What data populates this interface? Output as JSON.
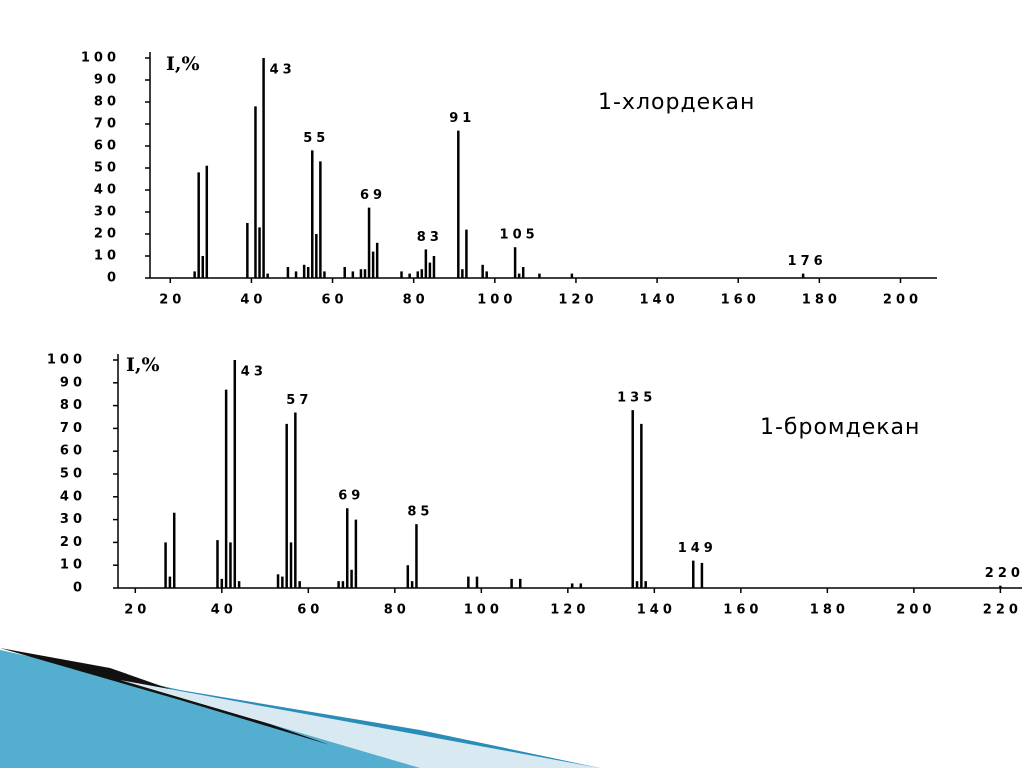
{
  "chart_data": [
    {
      "type": "bar",
      "title": "1-хлордекан",
      "y_label": "I,%",
      "color": "#000000",
      "x": [
        26,
        27,
        28,
        29,
        39,
        41,
        42,
        43,
        44,
        49,
        51,
        53,
        54,
        55,
        56,
        57,
        58,
        63,
        65,
        67,
        68,
        69,
        70,
        71,
        77,
        79,
        81,
        82,
        83,
        84,
        85,
        91,
        92,
        93,
        97,
        98,
        105,
        106,
        107,
        111,
        119,
        176
      ],
      "values": [
        3,
        48,
        10,
        51,
        25,
        78,
        23,
        100,
        2,
        5,
        3,
        6,
        5,
        58,
        20,
        53,
        3,
        5,
        3,
        4,
        4,
        32,
        12,
        16,
        3,
        2,
        3,
        4,
        13,
        7,
        10,
        67,
        4,
        22,
        6,
        3,
        14,
        2,
        5,
        2,
        2,
        2
      ],
      "peak_labels": [
        43,
        55,
        69,
        83,
        91,
        105,
        176
      ],
      "xlim": [
        15,
        209
      ],
      "xticks": [
        20,
        40,
        60,
        80,
        100,
        120,
        140,
        160,
        180,
        200
      ],
      "ylim": [
        0,
        100
      ],
      "yticks": [
        0,
        10,
        20,
        30,
        40,
        50,
        60,
        70,
        80,
        90,
        100
      ]
    },
    {
      "type": "bar",
      "title": "1-бромдекан",
      "y_label": "I,%",
      "color": "#000000",
      "x": [
        27,
        28,
        29,
        39,
        40,
        41,
        42,
        43,
        44,
        53,
        54,
        55,
        56,
        57,
        58,
        67,
        68,
        69,
        70,
        71,
        83,
        84,
        85,
        97,
        99,
        107,
        109,
        121,
        123,
        135,
        136,
        137,
        138,
        149,
        151,
        220
      ],
      "values": [
        20,
        5,
        33,
        21,
        4,
        87,
        20,
        100,
        3,
        6,
        5,
        72,
        20,
        77,
        3,
        3,
        3,
        35,
        8,
        30,
        10,
        3,
        28,
        5,
        5,
        4,
        4,
        2,
        2,
        78,
        3,
        72,
        3,
        12,
        11,
        1
      ],
      "peak_labels": [
        43,
        57,
        69,
        85,
        135,
        149,
        220
      ],
      "xlim": [
        16,
        225
      ],
      "xticks": [
        20,
        40,
        60,
        80,
        100,
        120,
        140,
        160,
        180,
        200,
        220
      ],
      "ylim": [
        0,
        100
      ],
      "yticks": [
        0,
        10,
        20,
        30,
        40,
        50,
        60,
        70,
        80,
        90,
        100
      ]
    }
  ]
}
